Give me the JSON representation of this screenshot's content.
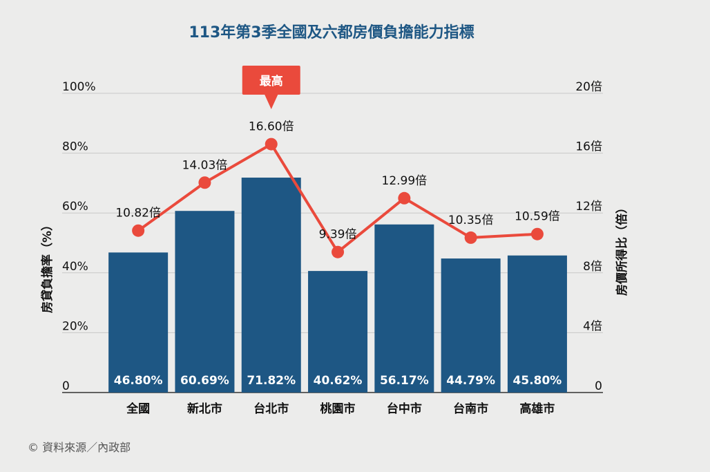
{
  "chart_data": {
    "type": "bar",
    "title": "113年第3季全國及六都房價負擔能力指標",
    "categories": [
      "全國",
      "新北市",
      "台北市",
      "桃園市",
      "台中市",
      "台南市",
      "高雄市"
    ],
    "series": [
      {
        "name": "房貸負擔率（%）",
        "type": "bar",
        "axis": "left",
        "values": [
          46.8,
          60.69,
          71.82,
          40.62,
          56.17,
          44.79,
          45.8
        ],
        "labels": [
          "46.80%",
          "60.69%",
          "71.82%",
          "40.62%",
          "56.17%",
          "44.79%",
          "45.80%"
        ]
      },
      {
        "name": "房價所得比（倍）",
        "type": "line",
        "axis": "right",
        "values": [
          10.82,
          14.03,
          16.6,
          9.39,
          12.99,
          10.35,
          10.59
        ],
        "labels": [
          "10.82倍",
          "14.03倍",
          "16.60倍",
          "9.39倍",
          "12.99倍",
          "10.35倍",
          "10.59倍"
        ]
      }
    ],
    "ylabel_left": "房貸負擔率（%）",
    "ylabel_right": "房價所得比（倍）",
    "ylim_left": [
      0,
      100
    ],
    "ylim_right": [
      0,
      20
    ],
    "yticks_left": [
      "0",
      "20%",
      "40%",
      "60%",
      "80%",
      "100%"
    ],
    "yticks_right": [
      "0",
      "4倍",
      "8倍",
      "12倍",
      "16倍",
      "20倍"
    ],
    "grid": true,
    "annotation": {
      "text": "最高",
      "category": "台北市"
    },
    "colors": {
      "bar": "#1e5784",
      "line": "#ea4a3c",
      "title": "#1e5784",
      "grid": "#c8c8c8"
    }
  },
  "source": "© 資料來源／內政部"
}
